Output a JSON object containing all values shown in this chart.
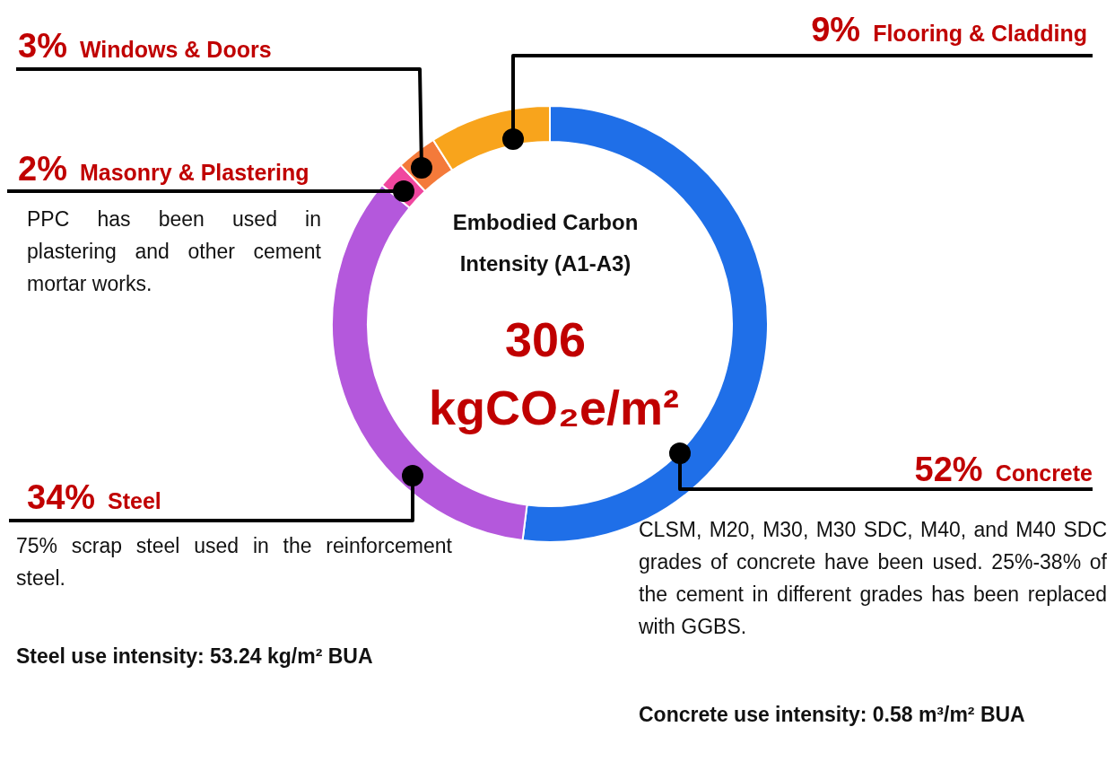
{
  "chart_data": {
    "type": "donut",
    "title": "Embodied Carbon Intensity (A1-A3)",
    "subtitle": "306 kgCO₂e/m²",
    "categories": [
      "Concrete",
      "Steel",
      "Masonry & Plastering",
      "Windows & Doors",
      "Flooring & Cladding"
    ],
    "values": [
      52,
      34,
      2,
      3,
      9
    ],
    "colors": [
      "#1f6fe8",
      "#b458dc",
      "#f0479f",
      "#f47a3a",
      "#f8a41c"
    ],
    "value_labels": [
      "52%",
      "34%",
      "2%",
      "3%",
      "9%"
    ],
    "annotations": [
      "PPC has been used in plastering and other cement mortar works.",
      "75% scrap steel used in the reinforcement steel.",
      "Steel use intensity: 53.24 kg/m² BUA",
      "CLSM, M20, M30, M30 SDC, M40, and M40 SDC grades of concrete have been used. 25%-38% of the cement in different grades has been replaced with GGBS.",
      "Concrete use intensity: 0.58 m³/m² BUA"
    ]
  }
}
